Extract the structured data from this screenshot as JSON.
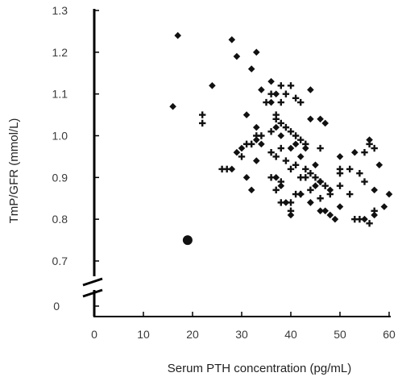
{
  "chart_data": {
    "type": "scatter",
    "title": "",
    "xlabel": "Serum PTH concentration (pg/mL)",
    "ylabel": "TmP/GFR (mmol/L)",
    "xlim": [
      0,
      60
    ],
    "ylim": [
      0.7,
      1.3
    ],
    "x_ticks": [
      0,
      10,
      20,
      30,
      40,
      50,
      60
    ],
    "y_ticks": [
      "1.3",
      "1.2",
      "1.1",
      "1.0",
      "0.9",
      "0.8",
      "0.7"
    ],
    "y_zero_label": "0",
    "y_axis_break": true,
    "grid": false,
    "legend": "none",
    "marker_color": "#111111",
    "series": [
      {
        "marker": "diamond",
        "x": [
          17,
          16,
          24,
          28,
          29,
          33,
          32,
          34,
          36,
          37,
          44,
          31,
          29,
          30,
          28,
          33,
          33,
          34,
          31,
          32,
          36,
          37,
          38,
          40,
          41,
          42,
          43,
          44,
          46,
          47,
          33,
          37,
          38,
          42,
          45,
          46,
          48,
          50,
          53,
          56,
          58,
          60,
          39,
          40,
          44,
          46,
          48,
          50,
          55,
          57,
          59,
          44,
          45,
          47,
          49,
          57
        ],
        "y": [
          1.24,
          1.07,
          1.12,
          1.23,
          1.19,
          1.2,
          1.16,
          1.11,
          1.13,
          1.1,
          1.11,
          1.05,
          0.96,
          0.97,
          0.92,
          1.02,
          0.99,
          0.98,
          0.9,
          0.87,
          1.08,
          1.02,
          1.0,
          0.97,
          0.98,
          0.95,
          0.97,
          1.04,
          1.04,
          1.03,
          0.94,
          0.9,
          0.88,
          0.86,
          0.93,
          0.89,
          0.87,
          0.95,
          0.96,
          0.99,
          0.93,
          0.86,
          0.84,
          0.81,
          0.84,
          0.82,
          0.81,
          0.83,
          0.8,
          0.81,
          0.83,
          0.84,
          0.88,
          0.82,
          0.8,
          0.87
        ]
      },
      {
        "marker": "cross",
        "x": [
          22,
          22,
          26,
          27,
          30,
          31,
          32,
          33,
          35,
          36,
          37,
          38,
          38,
          39,
          40,
          41,
          42,
          34,
          36,
          37,
          38,
          39,
          40,
          41,
          42,
          43,
          46,
          36,
          37,
          38,
          39,
          40,
          41,
          42,
          43,
          44,
          45,
          46,
          50,
          52,
          54,
          55,
          56,
          57,
          36,
          37,
          38,
          40,
          41,
          43,
          46,
          48,
          50,
          52,
          53,
          54,
          56,
          57,
          38,
          40,
          42,
          44,
          47,
          50,
          55
        ],
        "y": [
          1.05,
          1.03,
          0.92,
          0.92,
          0.95,
          0.98,
          0.98,
          1.0,
          1.08,
          1.1,
          1.05,
          1.08,
          1.12,
          1.1,
          1.12,
          1.09,
          1.08,
          1.0,
          1.01,
          1.04,
          1.03,
          1.02,
          1.01,
          1.0,
          0.99,
          0.98,
          0.97,
          0.96,
          0.95,
          0.97,
          0.94,
          0.92,
          0.93,
          0.9,
          0.92,
          0.91,
          0.9,
          0.89,
          0.92,
          0.92,
          0.91,
          0.96,
          0.98,
          0.97,
          0.9,
          0.87,
          0.89,
          0.84,
          0.86,
          0.9,
          0.85,
          0.86,
          0.88,
          0.86,
          0.8,
          0.8,
          0.79,
          0.82,
          0.84,
          0.82,
          0.86,
          0.87,
          0.88,
          0.91,
          0.89
        ]
      },
      {
        "marker": "circle",
        "x": [
          19
        ],
        "y": [
          0.75
        ]
      }
    ]
  }
}
